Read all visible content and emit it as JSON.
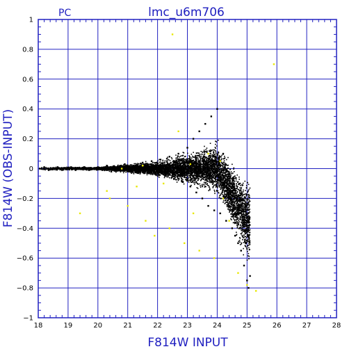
{
  "chart_data": {
    "type": "scatter",
    "corner_label": "PC",
    "title": "lmc_u6m706",
    "xlabel": "F814W INPUT",
    "ylabel": "F814W (OBS-INPUT)",
    "xlim": [
      18,
      28
    ],
    "ylim": [
      -1,
      1
    ],
    "x_ticks": [
      18,
      19,
      20,
      21,
      22,
      23,
      24,
      25,
      26,
      27,
      28
    ],
    "y_ticks": [
      -1,
      -0.8,
      -0.6,
      -0.4,
      -0.2,
      0,
      0.2,
      0.4,
      0.6,
      0.8,
      1
    ],
    "x_tick_labels": [
      "18",
      "19",
      "20",
      "21",
      "22",
      "23",
      "24",
      "25",
      "26",
      "27",
      "28"
    ],
    "y_tick_labels": [
      "−1",
      "−0.8",
      "−0.6",
      "−0.4",
      "−0.2",
      "0",
      "0.2",
      "0.4",
      "0.6",
      "0.8",
      "1"
    ],
    "grid": true,
    "colors": {
      "frame": "#2020c0",
      "grid": "#2020c0",
      "points_main": "#000000",
      "points_highlight": "#e8e800"
    },
    "series": [
      {
        "color": "#000000",
        "points": [
          [
            18.05,
            0.0
          ],
          [
            18.2,
            0.01
          ],
          [
            18.35,
            -0.01
          ],
          [
            18.5,
            0.0
          ],
          [
            18.65,
            0.01
          ],
          [
            18.8,
            -0.01
          ],
          [
            18.95,
            0.0
          ],
          [
            19.1,
            0.01
          ],
          [
            19.25,
            -0.01
          ],
          [
            19.4,
            0.0
          ],
          [
            19.55,
            0.01
          ],
          [
            19.7,
            -0.01
          ],
          [
            19.85,
            0.0
          ],
          [
            20.0,
            0.01
          ],
          [
            20.15,
            -0.01
          ],
          [
            20.3,
            0.02
          ],
          [
            20.45,
            -0.02
          ],
          [
            20.6,
            0.01
          ],
          [
            20.75,
            -0.01
          ],
          [
            20.9,
            0.03
          ],
          [
            21.05,
            -0.02
          ],
          [
            21.2,
            0.02
          ],
          [
            21.35,
            -0.03
          ],
          [
            21.5,
            0.04
          ],
          [
            21.65,
            -0.03
          ],
          [
            21.8,
            0.05
          ],
          [
            21.95,
            -0.04
          ],
          [
            22.1,
            0.06
          ],
          [
            22.25,
            -0.05
          ],
          [
            22.4,
            0.08
          ],
          [
            22.55,
            -0.07
          ],
          [
            22.7,
            0.1
          ],
          [
            22.85,
            -0.09
          ],
          [
            23.0,
            0.14
          ],
          [
            23.1,
            -0.12
          ],
          [
            23.2,
            0.2
          ],
          [
            23.3,
            -0.16
          ],
          [
            23.4,
            0.25
          ],
          [
            23.5,
            -0.2
          ],
          [
            23.6,
            0.3
          ],
          [
            23.7,
            -0.25
          ],
          [
            23.8,
            0.35
          ],
          [
            23.9,
            -0.28
          ],
          [
            24.0,
            0.4
          ],
          [
            24.1,
            -0.3
          ],
          [
            24.2,
            0.1
          ],
          [
            24.3,
            -0.35
          ],
          [
            24.4,
            -0.15
          ],
          [
            24.5,
            -0.4
          ],
          [
            24.6,
            -0.45
          ],
          [
            24.7,
            -0.5
          ],
          [
            24.8,
            -0.55
          ],
          [
            24.9,
            -0.65
          ],
          [
            25.0,
            -0.75
          ],
          [
            25.05,
            -0.8
          ],
          [
            25.1,
            -0.72
          ]
        ]
      },
      {
        "color": "#e8e800",
        "points": [
          [
            22.5,
            0.9
          ],
          [
            25.9,
            0.7
          ],
          [
            19.4,
            -0.3
          ],
          [
            20.3,
            -0.15
          ],
          [
            20.4,
            -0.2
          ],
          [
            21.0,
            -0.25
          ],
          [
            21.3,
            -0.12
          ],
          [
            21.6,
            -0.35
          ],
          [
            21.9,
            -0.45
          ],
          [
            22.2,
            -0.1
          ],
          [
            22.4,
            -0.4
          ],
          [
            22.7,
            0.25
          ],
          [
            22.9,
            -0.5
          ],
          [
            23.2,
            -0.3
          ],
          [
            23.4,
            -0.55
          ],
          [
            23.7,
            0.1
          ],
          [
            23.9,
            -0.6
          ],
          [
            24.2,
            -0.2
          ],
          [
            24.4,
            -0.35
          ],
          [
            24.7,
            -0.7
          ],
          [
            25.0,
            -0.78
          ],
          [
            25.3,
            -0.82
          ],
          [
            24.1,
            0.05
          ],
          [
            23.1,
            0.03
          ],
          [
            21.5,
            0.02
          ],
          [
            20.8,
            0.0
          ]
        ]
      }
    ]
  }
}
